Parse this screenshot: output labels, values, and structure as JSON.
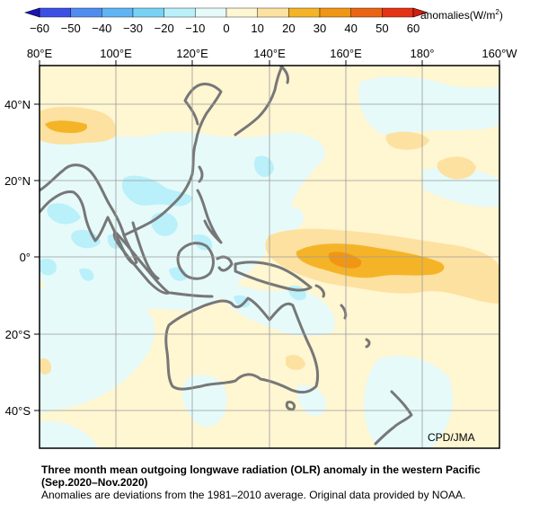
{
  "colorbar": {
    "ticks": [
      "-60",
      "-50",
      "-40",
      "-30",
      "-20",
      "-10",
      "0",
      "10",
      "20",
      "30",
      "40",
      "50",
      "60"
    ],
    "bins": [
      {
        "min": -60,
        "max": -50,
        "color": "#3c50e6"
      },
      {
        "min": -50,
        "max": -40,
        "color": "#508cf0"
      },
      {
        "min": -40,
        "max": -30,
        "color": "#5fb4f5"
      },
      {
        "min": -30,
        "max": -20,
        "color": "#78d2f5"
      },
      {
        "min": -20,
        "max": -10,
        "color": "#b9f0fa"
      },
      {
        "min": -10,
        "max": 0,
        "color": "#e6fafa"
      },
      {
        "min": 0,
        "max": 10,
        "color": "#fff6d2"
      },
      {
        "min": 10,
        "max": 20,
        "color": "#fde1a0"
      },
      {
        "min": 20,
        "max": 30,
        "color": "#f5b428"
      },
      {
        "min": 30,
        "max": 40,
        "color": "#f09614"
      },
      {
        "min": 40,
        "max": 50,
        "color": "#eb6414"
      },
      {
        "min": 50,
        "max": 60,
        "color": "#e63214"
      }
    ],
    "unit_prefix": "anomalies(W/m",
    "unit_exp": "2",
    "unit_suffix": ")"
  },
  "map": {
    "lon_labels": [
      "80°E",
      "100°E",
      "120°E",
      "140°E",
      "160°E",
      "180°",
      "160°W"
    ],
    "lat_labels": [
      "40°N",
      "20°N",
      "0°",
      "20°S",
      "40°S"
    ],
    "lon_range": [
      "80°E",
      "160°W"
    ],
    "lat_range": [
      "50°S",
      "50°N"
    ],
    "coast_color": "#777777",
    "grid_color": "#9a9a9a"
  },
  "credit": "CPD/JMA",
  "caption": {
    "title_line1": "Three month mean outgoing longwave radiation (OLR) anomaly in the western Pacific",
    "title_line2": "(Sep.2020–Nov.2020)",
    "note": "Anomalies are deviations from the 1981–2010 average. Original data provided by NOAA."
  }
}
